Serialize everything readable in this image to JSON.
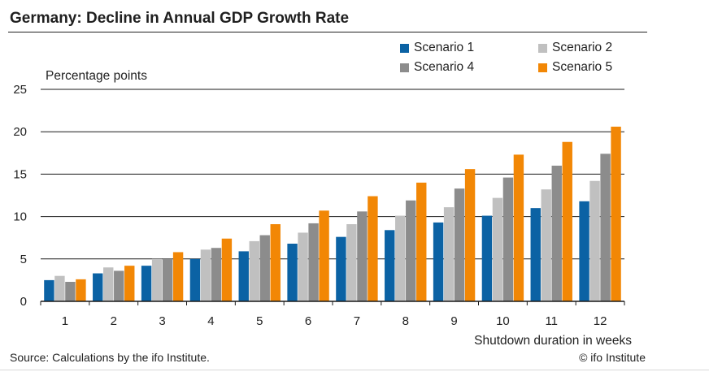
{
  "title": "Germany: Decline in Annual GDP Growth Rate",
  "source": "Source: Calculations by the ifo Institute.",
  "copyright": "© ifo Institute",
  "chart_data": {
    "type": "bar",
    "title": "Germany: Decline in Annual GDP Growth Rate",
    "ylabel": "Percentage points",
    "xlabel": "Shutdown duration in weeks",
    "ylim": [
      0,
      25
    ],
    "yticks": [
      0,
      5,
      10,
      15,
      20,
      25
    ],
    "grid": true,
    "legend_position": "top-right",
    "categories": [
      "1",
      "2",
      "3",
      "4",
      "5",
      "6",
      "7",
      "8",
      "9",
      "10",
      "11",
      "12"
    ],
    "series": [
      {
        "name": "Scenario 1",
        "color": "#0b62a4",
        "values": [
          2.5,
          3.3,
          4.2,
          5.0,
          5.9,
          6.8,
          7.6,
          8.4,
          9.3,
          10.1,
          11.0,
          11.8
        ]
      },
      {
        "name": "Scenario 2",
        "color": "#c0c0c0",
        "values": [
          3.0,
          4.0,
          5.0,
          6.1,
          7.1,
          8.1,
          9.1,
          10.1,
          11.1,
          12.2,
          13.2,
          14.2
        ]
      },
      {
        "name": "Scenario 4",
        "color": "#8c8c8c",
        "values": [
          2.3,
          3.6,
          5.0,
          6.3,
          7.8,
          9.2,
          10.6,
          11.9,
          13.3,
          14.6,
          16.0,
          17.4
        ]
      },
      {
        "name": "Scenario 5",
        "color": "#f28705",
        "values": [
          2.6,
          4.2,
          5.8,
          7.4,
          9.1,
          10.7,
          12.4,
          14.0,
          15.6,
          17.3,
          18.8,
          20.6
        ]
      }
    ]
  }
}
